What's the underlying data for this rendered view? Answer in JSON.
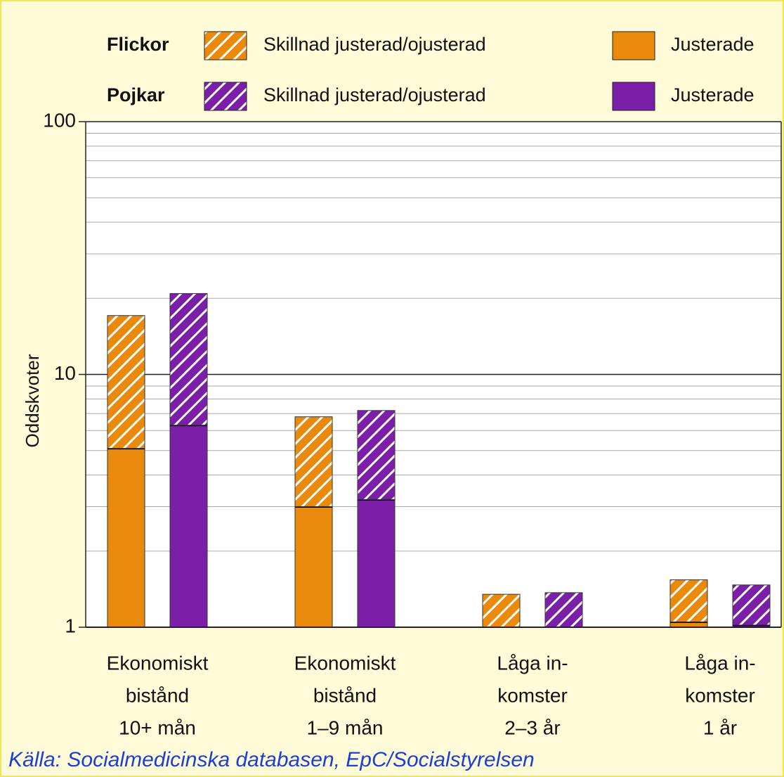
{
  "chart_data": {
    "type": "stacked-bar",
    "y_label": "Oddskvoter",
    "source": "Källa: Socialmedicinska databasen, EpC/Socialstyrelsen",
    "log_scale": true,
    "ylim": [
      1,
      100
    ],
    "yticks": [
      1,
      10,
      100
    ],
    "grid": true,
    "categories": [
      [
        "Ekonomiskt",
        "bistånd",
        "10+ mån"
      ],
      [
        "Ekonomiskt",
        "bistånd",
        "1–9 mån"
      ],
      [
        "Låga in-",
        "komster",
        "2–3 år"
      ],
      [
        "Låga in-",
        "komster",
        "1 år"
      ]
    ],
    "series": [
      {
        "group": "Flickor",
        "name": "Justerade",
        "color": "#e98a0c",
        "hatch": false,
        "values": [
          5.1,
          3.0,
          1.0,
          1.05
        ]
      },
      {
        "group": "Flickor",
        "name": "Skillnad justerad/ojusterad",
        "color": "#e98a0c",
        "hatch": true,
        "values": [
          12.0,
          3.8,
          0.35,
          0.49
        ]
      },
      {
        "group": "Pojkar",
        "name": "Justerade",
        "color": "#7b1fa8",
        "hatch": false,
        "values": [
          6.3,
          3.2,
          1.0,
          1.02
        ]
      },
      {
        "group": "Pojkar",
        "name": "Skillnad justerad/ojusterad",
        "color": "#7b1fa8",
        "hatch": true,
        "values": [
          14.6,
          4.0,
          0.37,
          0.45
        ]
      }
    ]
  }
}
